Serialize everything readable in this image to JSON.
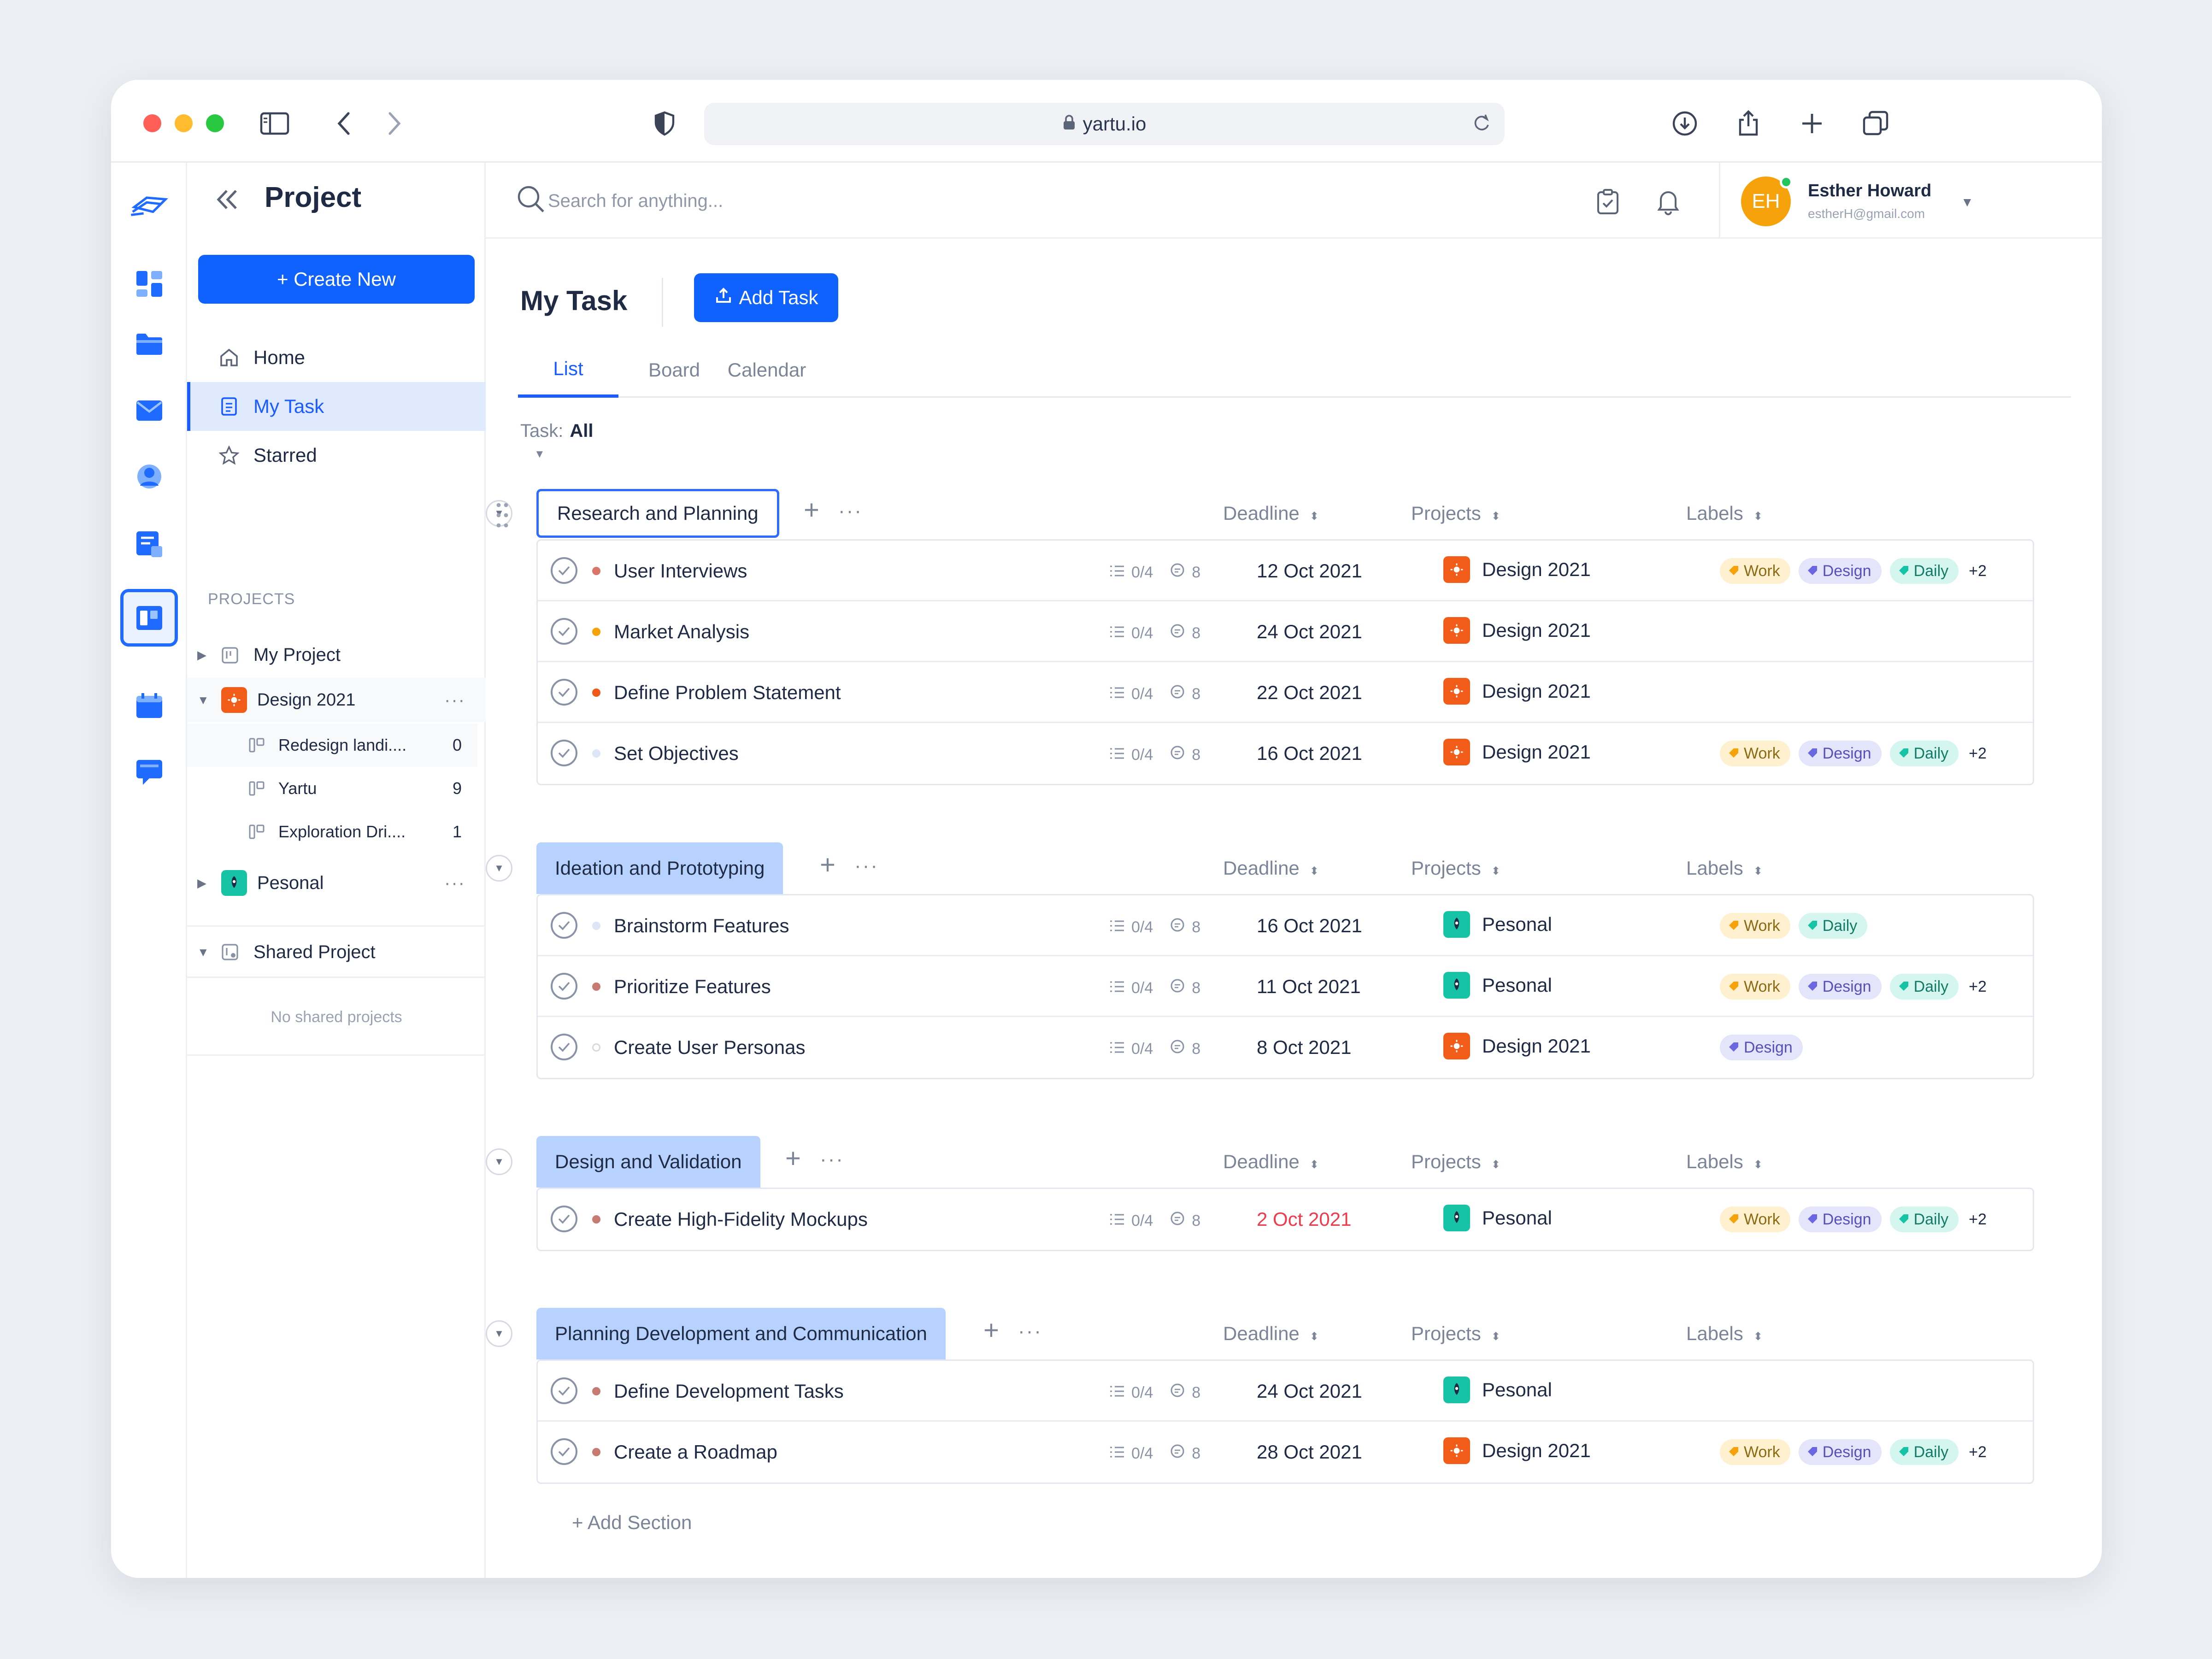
{
  "browser": {
    "url": "yartu.io"
  },
  "sidebar": {
    "title": "Project",
    "create_label": "+ Create New",
    "nav": [
      {
        "label": "Home",
        "icon": "home-icon"
      },
      {
        "label": "My Task",
        "icon": "task-doc-icon"
      },
      {
        "label": "Starred",
        "icon": "star-icon"
      }
    ],
    "projects_heading": "PROJECTS",
    "projects": {
      "my_project": "My Project",
      "design": "Design 2021",
      "design_children": [
        {
          "label": "Redesign landi....",
          "count": "0"
        },
        {
          "label": "Yartu",
          "count": "9"
        },
        {
          "label": "Exploration Dri....",
          "count": "1"
        }
      ],
      "personal": "Pesonal"
    },
    "shared_heading": "Shared Project",
    "shared_empty": "No shared projects"
  },
  "header": {
    "search_placeholder": "Search for anything...",
    "user": {
      "initials": "EH",
      "name": "Esther Howard",
      "email": "estherH@gmail.com"
    }
  },
  "main": {
    "title": "My Task",
    "add_task_label": "Add Task",
    "tabs": [
      "List",
      "Board",
      "Calendar"
    ],
    "active_tab": "List",
    "filter_label": "Task:",
    "filter_value": "All",
    "columns": {
      "deadline": "Deadline",
      "projects": "Projects",
      "labels": "Labels"
    },
    "add_section_label": "+ Add Section",
    "sections": [
      {
        "name": "Research and Planning",
        "tasks": [
          {
            "name": "User Interviews",
            "sub": "0/4",
            "comments": "8",
            "deadline": "12 Oct 2021",
            "project": "Design 2021",
            "labels": [
              "Work",
              "Design",
              "Daily"
            ],
            "more": "+2"
          },
          {
            "name": "Market Analysis",
            "sub": "0/4",
            "comments": "8",
            "deadline": "24 Oct 2021",
            "project": "Design 2021",
            "labels": []
          },
          {
            "name": "Define Problem Statement",
            "sub": "0/4",
            "comments": "8",
            "deadline": "22 Oct 2021",
            "project": "Design 2021",
            "labels": []
          },
          {
            "name": "Set Objectives",
            "sub": "0/4",
            "comments": "8",
            "deadline": "16 Oct 2021",
            "project": "Design 2021",
            "labels": [
              "Work",
              "Design",
              "Daily"
            ],
            "more": "+2"
          }
        ]
      },
      {
        "name": "Ideation and Prototyping",
        "tasks": [
          {
            "name": "Brainstorm Features",
            "sub": "0/4",
            "comments": "8",
            "deadline": "16 Oct 2021",
            "project": "Pesonal",
            "labels": [
              "Work",
              "Daily"
            ]
          },
          {
            "name": "Prioritize Features",
            "sub": "0/4",
            "comments": "8",
            "deadline": "11 Oct 2021",
            "project": "Pesonal",
            "labels": [
              "Work",
              "Design",
              "Daily"
            ],
            "more": "+2"
          },
          {
            "name": "Create User Personas",
            "sub": "0/4",
            "comments": "8",
            "deadline": "8 Oct 2021",
            "project": "Design 2021",
            "labels": [
              "Design"
            ]
          }
        ]
      },
      {
        "name": "Design and Validation",
        "tasks": [
          {
            "name": "Create High-Fidelity Mockups",
            "sub": "0/4",
            "comments": "8",
            "deadline": "2 Oct 2021",
            "project": "Pesonal",
            "labels": [
              "Work",
              "Design",
              "Daily"
            ],
            "more": "+2"
          }
        ]
      },
      {
        "name": "Planning Development and Communication",
        "tasks": [
          {
            "name": "Define Development Tasks",
            "sub": "0/4",
            "comments": "8",
            "deadline": "24 Oct 2021",
            "project": "Pesonal",
            "labels": []
          },
          {
            "name": "Create a Roadmap",
            "sub": "0/4",
            "comments": "8",
            "deadline": "28 Oct 2021",
            "project": "Design 2021",
            "labels": [
              "Work",
              "Design",
              "Daily"
            ],
            "more": "+2"
          }
        ]
      }
    ]
  },
  "colors": {
    "accent": "#1062ff",
    "design_project": "#f25c19",
    "personal_project": "#17c3a5",
    "overdue": "#ef3b4e",
    "section_pill": "#b8d2ff"
  }
}
